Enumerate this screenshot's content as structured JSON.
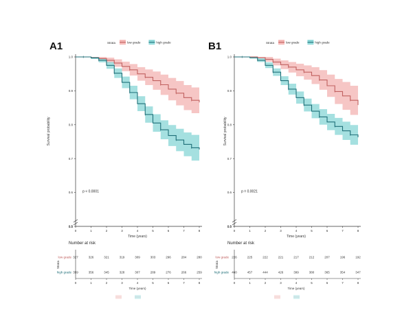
{
  "colors": {
    "low": "#c0605f",
    "low_band": "#f4b8b6",
    "high": "#1f6f78",
    "high_band": "#8fd8d8",
    "axis": "#333333"
  },
  "chart_data": [
    {
      "type": "line",
      "panel_label": "A1",
      "legend": {
        "title": "Strata",
        "items": [
          "low grade",
          "high grade"
        ],
        "position": "top"
      },
      "xlabel": "Time (years)",
      "ylabel": "Survival probability",
      "xlim": [
        0,
        8
      ],
      "ylim": [
        0.5,
        1.0
      ],
      "xticks": [
        "0",
        "1",
        "2",
        "3",
        "4",
        "5",
        "6",
        "7",
        "8"
      ],
      "yticks": [
        "0.5",
        "0.6",
        "0.7",
        "0.8",
        "0.9",
        "1.0"
      ],
      "y_axis_break": "0.0",
      "pvalue": "p < 0.0001",
      "series": [
        {
          "name": "low grade",
          "color": "#c0605f",
          "x": [
            0,
            0.5,
            1,
            1.5,
            2,
            2.5,
            3,
            3.5,
            4,
            4.5,
            5,
            5.5,
            6,
            6.5,
            7,
            7.5,
            8
          ],
          "y": [
            1.0,
            1.0,
            0.998,
            0.995,
            0.99,
            0.982,
            0.972,
            0.962,
            0.95,
            0.94,
            0.93,
            0.918,
            0.905,
            0.893,
            0.88,
            0.872,
            0.866
          ],
          "lower": [
            1.0,
            1.0,
            0.996,
            0.99,
            0.982,
            0.971,
            0.958,
            0.945,
            0.93,
            0.917,
            0.903,
            0.888,
            0.872,
            0.857,
            0.843,
            0.834,
            0.826
          ],
          "upper": [
            1.0,
            1.0,
            1.0,
            1.0,
            0.998,
            0.993,
            0.986,
            0.979,
            0.97,
            0.963,
            0.957,
            0.948,
            0.938,
            0.929,
            0.917,
            0.91,
            0.906
          ]
        },
        {
          "name": "high grade",
          "color": "#1f6f78",
          "x": [
            0,
            0.5,
            1,
            1.5,
            2,
            2.5,
            3,
            3.5,
            4,
            4.5,
            5,
            5.5,
            6,
            6.5,
            7,
            7.5,
            8
          ],
          "y": [
            1.0,
            1.0,
            0.997,
            0.99,
            0.975,
            0.952,
            0.925,
            0.895,
            0.862,
            0.83,
            0.805,
            0.785,
            0.768,
            0.755,
            0.742,
            0.732,
            0.727
          ],
          "lower": [
            1.0,
            1.0,
            0.994,
            0.984,
            0.965,
            0.938,
            0.908,
            0.875,
            0.84,
            0.806,
            0.779,
            0.757,
            0.737,
            0.722,
            0.707,
            0.694,
            0.686
          ],
          "upper": [
            1.0,
            1.0,
            1.0,
            0.996,
            0.985,
            0.966,
            0.942,
            0.915,
            0.884,
            0.854,
            0.831,
            0.813,
            0.799,
            0.788,
            0.777,
            0.77,
            0.768
          ]
        }
      ],
      "risk_table": {
        "title": "Number at risk",
        "strata_label": "Strata",
        "x_label": "Time (years)",
        "rows": [
          {
            "name": "low grade",
            "values": [
              "327",
              "326",
              "321",
              "319",
              "309",
              "303",
              "296",
              "284",
              "280"
            ]
          },
          {
            "name": "high grade",
            "values": [
              "359",
              "356",
              "345",
              "328",
              "307",
              "289",
              "276",
              "266",
              "259"
            ]
          }
        ]
      }
    },
    {
      "type": "line",
      "panel_label": "B1",
      "legend": {
        "title": "Strata",
        "items": [
          "low grade",
          "high grade"
        ],
        "position": "top"
      },
      "xlabel": "Time (years)",
      "ylabel": "Survival probability",
      "xlim": [
        0,
        8
      ],
      "ylim": [
        0.5,
        1.0
      ],
      "xticks": [
        "0",
        "1",
        "2",
        "3",
        "4",
        "5",
        "6",
        "7",
        "8"
      ],
      "yticks": [
        "0.5",
        "0.6",
        "0.7",
        "0.8",
        "0.9",
        "1.0"
      ],
      "y_axis_break": "0.0",
      "pvalue": "p = 0.0021",
      "series": [
        {
          "name": "low grade",
          "color": "#c0605f",
          "x": [
            0,
            0.5,
            1,
            1.5,
            2,
            2.5,
            3,
            3.5,
            4,
            4.5,
            5,
            5.5,
            6,
            6.5,
            7,
            7.5,
            8
          ],
          "y": [
            1.0,
            1.0,
            1.0,
            0.998,
            0.993,
            0.985,
            0.977,
            0.97,
            0.962,
            0.955,
            0.945,
            0.932,
            0.915,
            0.898,
            0.885,
            0.872,
            0.858
          ],
          "lower": [
            1.0,
            1.0,
            1.0,
            0.994,
            0.986,
            0.975,
            0.964,
            0.954,
            0.943,
            0.933,
            0.92,
            0.903,
            0.882,
            0.861,
            0.844,
            0.829,
            0.81
          ],
          "upper": [
            1.0,
            1.0,
            1.0,
            1.0,
            1.0,
            0.995,
            0.99,
            0.985,
            0.98,
            0.975,
            0.97,
            0.961,
            0.948,
            0.935,
            0.926,
            0.915,
            0.905
          ]
        },
        {
          "name": "high grade",
          "color": "#1f6f78",
          "x": [
            0,
            0.5,
            1,
            1.5,
            2,
            2.5,
            3,
            3.5,
            4,
            4.5,
            5,
            5.5,
            6,
            6.5,
            7,
            7.5,
            8
          ],
          "y": [
            1.0,
            1.0,
            0.998,
            0.99,
            0.975,
            0.955,
            0.93,
            0.905,
            0.88,
            0.858,
            0.84,
            0.823,
            0.808,
            0.795,
            0.782,
            0.77,
            0.763
          ],
          "lower": [
            1.0,
            1.0,
            0.995,
            0.985,
            0.967,
            0.944,
            0.917,
            0.889,
            0.862,
            0.839,
            0.819,
            0.8,
            0.784,
            0.77,
            0.755,
            0.741,
            0.731
          ],
          "upper": [
            1.0,
            1.0,
            1.0,
            0.996,
            0.984,
            0.966,
            0.943,
            0.921,
            0.898,
            0.877,
            0.861,
            0.846,
            0.832,
            0.82,
            0.809,
            0.799,
            0.795
          ]
        }
      ],
      "risk_table": {
        "title": "Number at risk",
        "strata_label": "Strata",
        "x_label": "Time (years)",
        "rows": [
          {
            "name": "low grade",
            "values": [
              "226",
              "225",
              "222",
              "221",
              "217",
              "212",
              "207",
              "196",
              "192"
            ]
          },
          {
            "name": "high grade",
            "values": [
              "460",
              "457",
              "444",
              "426",
              "399",
              "380",
              "365",
              "354",
              "347"
            ]
          }
        ]
      }
    }
  ]
}
